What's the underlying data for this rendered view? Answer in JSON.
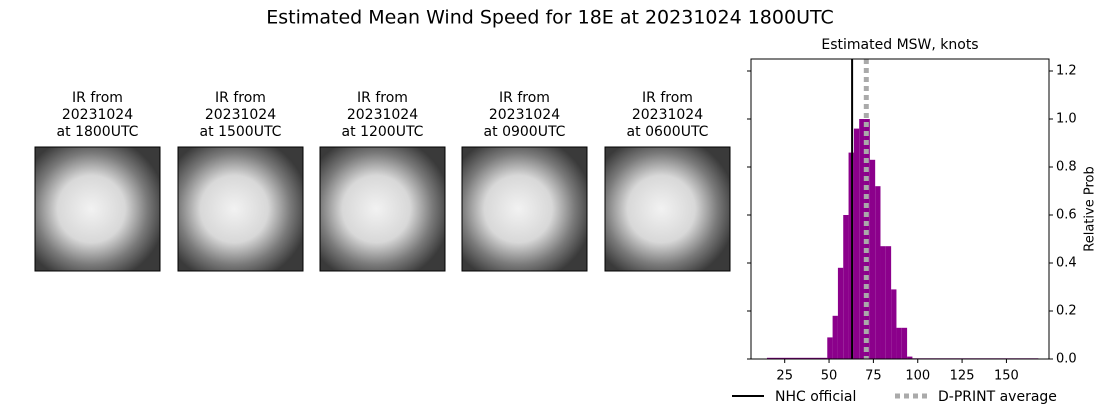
{
  "title": "Estimated Mean Wind Speed for 18E at 20231024 1800UTC",
  "panels": [
    {
      "lines": [
        "IR from",
        "20231024",
        "at 1800UTC"
      ]
    },
    {
      "lines": [
        "IR from",
        "20231024",
        "at 1500UTC"
      ]
    },
    {
      "lines": [
        "IR from",
        "20231024",
        "at 1200UTC"
      ]
    },
    {
      "lines": [
        "IR from",
        "20231024",
        "at 0900UTC"
      ]
    },
    {
      "lines": [
        "IR from",
        "20231024",
        "at 0600UTC"
      ]
    }
  ],
  "chart_data": {
    "type": "histogram",
    "title": "Estimated MSW, knots",
    "ylabel": "Relative Prob",
    "bins": [
      15,
      49,
      52,
      55,
      58,
      61,
      64,
      67,
      70,
      73,
      76,
      79,
      82,
      85,
      88,
      91,
      94,
      97,
      168
    ],
    "counts": [
      0.005,
      0.09,
      0.18,
      0.38,
      0.6,
      0.86,
      0.96,
      1.0,
      1.0,
      0.83,
      0.72,
      0.47,
      0.47,
      0.29,
      0.13,
      0.13,
      0.01,
      0.003
    ],
    "color": "#8b008b",
    "lines": [
      {
        "name": "NHC official",
        "value": 63,
        "color": "#000000",
        "style": "solid"
      },
      {
        "name": "D-PRINT average",
        "value": 71,
        "color": "#aaaaaa",
        "style": "dotted"
      }
    ],
    "xlim": [
      6,
      174
    ],
    "xticks": [
      25,
      50,
      75,
      100,
      125,
      150
    ],
    "ylim": [
      0,
      1.25
    ],
    "yticks": [
      {
        "value": 0,
        "label": "0.0"
      },
      {
        "value": 0.2,
        "label": "0.2"
      },
      {
        "value": 0.4,
        "label": "0.4"
      },
      {
        "value": 0.6,
        "label": "0.6"
      },
      {
        "value": 0.8,
        "label": "0.8"
      },
      {
        "value": 1,
        "label": "1.0"
      },
      {
        "value": 1.2,
        "label": "1.2"
      }
    ]
  }
}
